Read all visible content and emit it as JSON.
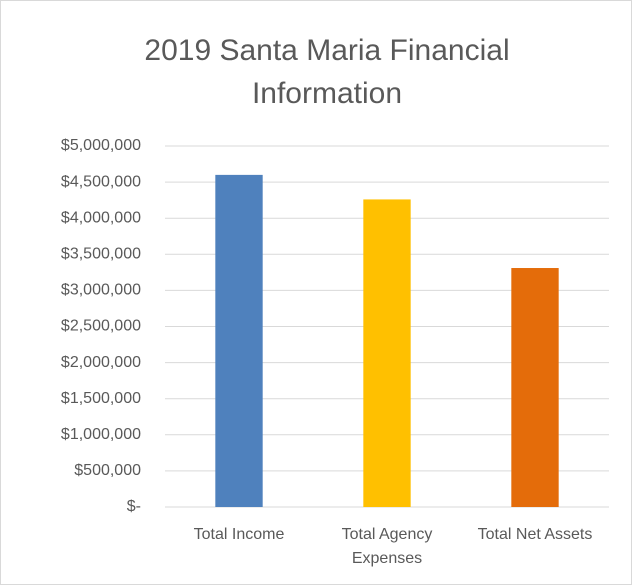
{
  "chart_data": {
    "type": "bar",
    "title": "2019 Santa Maria Financial Information",
    "categories": [
      "Total Income",
      "Total Agency Expenses",
      "Total Net Assets"
    ],
    "values": [
      4600000,
      4260000,
      3310000
    ],
    "colors": [
      "#4f81bd",
      "#ffc000",
      "#e46c0a"
    ],
    "ylim": [
      0,
      5000000
    ],
    "yticks": [
      {
        "value": 0,
        "label": "$-"
      },
      {
        "value": 500000,
        "label": "$500,000"
      },
      {
        "value": 1000000,
        "label": "$1,000,000"
      },
      {
        "value": 1500000,
        "label": "$1,500,000"
      },
      {
        "value": 2000000,
        "label": "$2,000,000"
      },
      {
        "value": 2500000,
        "label": "$2,500,000"
      },
      {
        "value": 3000000,
        "label": "$3,000,000"
      },
      {
        "value": 3500000,
        "label": "$3,500,000"
      },
      {
        "value": 4000000,
        "label": "$4,000,000"
      },
      {
        "value": 4500000,
        "label": "$4,500,000"
      },
      {
        "value": 5000000,
        "label": "$5,000,000"
      }
    ],
    "grid": true
  }
}
